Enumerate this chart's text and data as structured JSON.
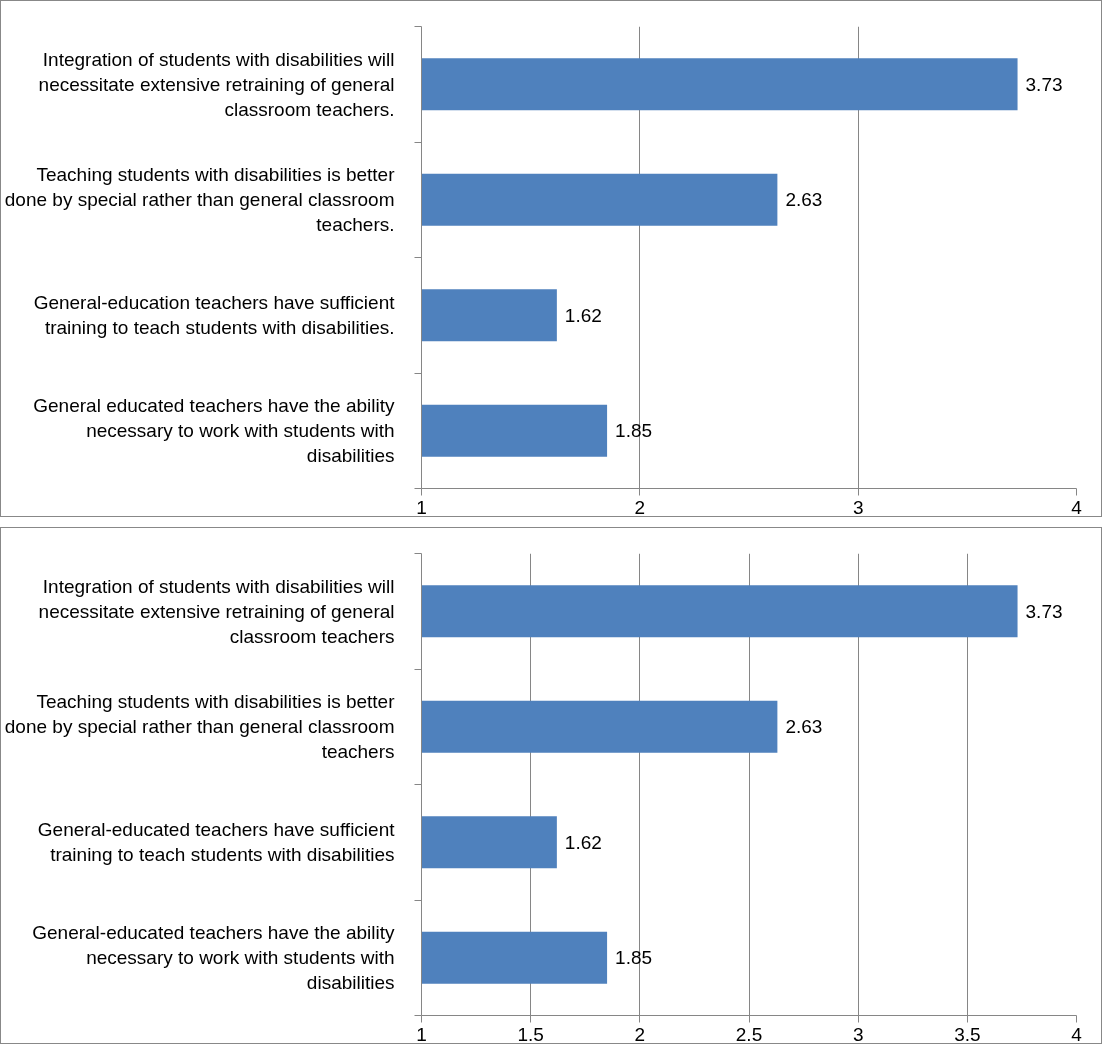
{
  "chart_data": [
    {
      "type": "bar",
      "orientation": "horizontal",
      "categories": [
        "Integration of students with disabilities will necessitate extensive retraining of general classroom teachers.",
        "Teaching students with disabilities is better done by special rather than general classroom teachers.",
        "General-education teachers have sufficient training to teach students with disabilities.",
        "General educated teachers have the ability necessary to work with students with disabilities"
      ],
      "values": [
        3.73,
        2.63,
        1.62,
        1.85
      ],
      "color": "#4f81bd",
      "xlim": [
        1,
        4
      ],
      "xticks": [
        1,
        2,
        3,
        4
      ],
      "grid": "x",
      "data_labels": true
    },
    {
      "type": "bar",
      "orientation": "horizontal",
      "categories": [
        "Integration of students with disabilities will necessitate extensive retraining of general classroom teachers",
        "Teaching students with disabilities is better done by special rather than general classroom teachers",
        "General-educated teachers have sufficient training to teach students with disabilities",
        "General-educated teachers have the ability necessary to work with students with disabilities"
      ],
      "values": [
        3.73,
        2.63,
        1.62,
        1.85
      ],
      "color": "#4f81bd",
      "xlim": [
        1,
        4
      ],
      "xticks": [
        1,
        1.5,
        2,
        2.5,
        3,
        3.5,
        4
      ],
      "grid": "x",
      "data_labels": true
    }
  ]
}
